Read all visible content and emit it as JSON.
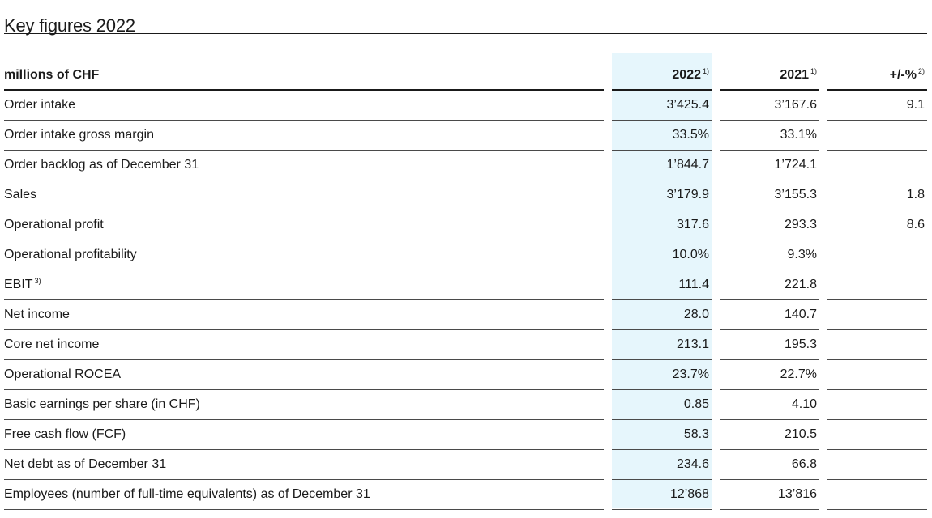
{
  "title": "Key figures 2022",
  "header": {
    "label": "millions of CHF",
    "col2022": "2022",
    "col2022_note": "1)",
    "col2021": "2021",
    "col2021_note": "1)",
    "colchange": "+/-%",
    "colchange_note": "2)"
  },
  "rows": [
    {
      "label": "Order intake",
      "note": "",
      "v2022": "3’425.4",
      "v2021": "3’167.6",
      "change": "9.1"
    },
    {
      "label": "Order intake gross margin",
      "note": "",
      "v2022": "33.5%",
      "v2021": "33.1%",
      "change": ""
    },
    {
      "label": "Order backlog as of December 31",
      "note": "",
      "v2022": "1’844.7",
      "v2021": "1’724.1",
      "change": ""
    },
    {
      "label": "Sales",
      "note": "",
      "v2022": "3’179.9",
      "v2021": "3’155.3",
      "change": "1.8"
    },
    {
      "label": "Operational profit",
      "note": "",
      "v2022": "317.6",
      "v2021": "293.3",
      "change": "8.6"
    },
    {
      "label": "Operational profitability",
      "note": "",
      "v2022": "10.0%",
      "v2021": "9.3%",
      "change": ""
    },
    {
      "label": "EBIT",
      "note": "3)",
      "v2022": "111.4",
      "v2021": "221.8",
      "change": ""
    },
    {
      "label": "Net income",
      "note": "",
      "v2022": "28.0",
      "v2021": "140.7",
      "change": ""
    },
    {
      "label": "Core net income",
      "note": "",
      "v2022": "213.1",
      "v2021": "195.3",
      "change": ""
    },
    {
      "label": "Operational ROCEA",
      "note": "",
      "v2022": "23.7%",
      "v2021": "22.7%",
      "change": ""
    },
    {
      "label": "Basic earnings per share (in CHF)",
      "note": "",
      "v2022": "0.85",
      "v2021": "4.10",
      "change": ""
    },
    {
      "label": "Free cash flow (FCF)",
      "note": "",
      "v2022": "58.3",
      "v2021": "210.5",
      "change": ""
    },
    {
      "label": "Net debt as of December 31",
      "note": "",
      "v2022": "234.6",
      "v2021": "66.8",
      "change": ""
    },
    {
      "label": "Employees (number of full-time equivalents) as of December 31",
      "note": "",
      "v2022": "12’868",
      "v2021": "13’816",
      "change": ""
    }
  ]
}
